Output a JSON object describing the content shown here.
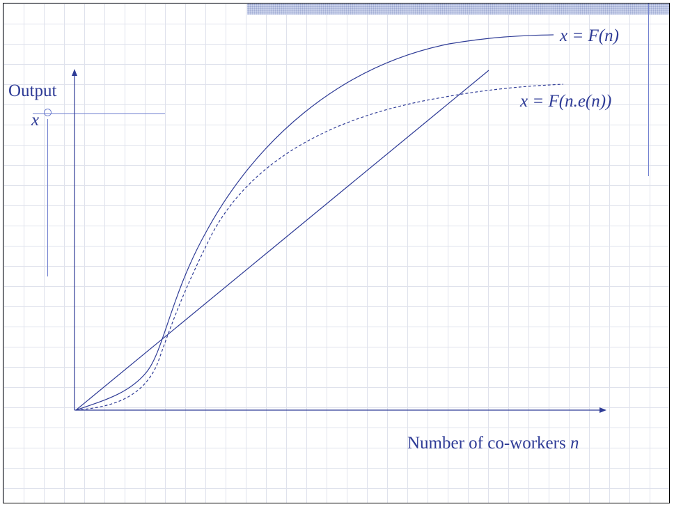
{
  "labels": {
    "y_axis": "Output",
    "x_marker": "x",
    "curve_production": "x = F(n)",
    "curve_effort": "x = F(n.e(n))",
    "x_axis_text": "Number of co-workers ",
    "x_axis_var": "n"
  },
  "colors": {
    "ink": "#2e3b96",
    "grid": "#dfe2ec",
    "decoration": "#6f7fcf"
  }
}
